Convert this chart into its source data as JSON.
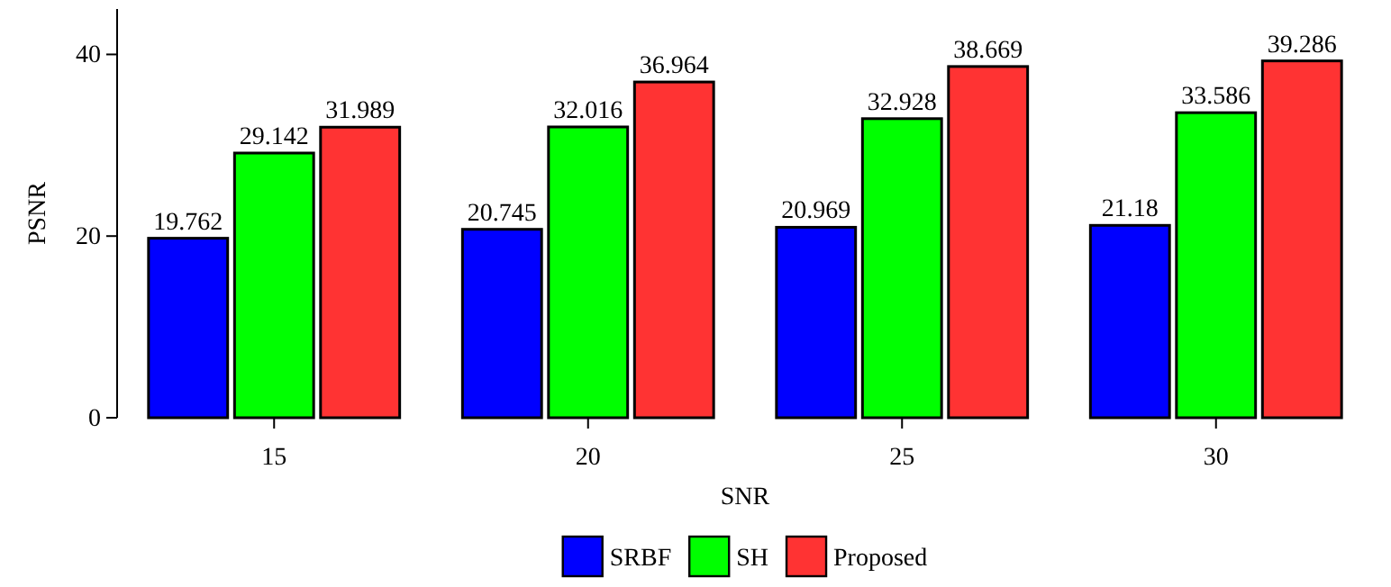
{
  "chart_data": {
    "type": "bar",
    "xlabel": "SNR",
    "ylabel": "PSNR",
    "categories": [
      "15",
      "20",
      "25",
      "30"
    ],
    "series": [
      {
        "name": "SRBF",
        "color": "#0000ff",
        "values": [
          19.762,
          20.745,
          20.969,
          21.18
        ]
      },
      {
        "name": "SH",
        "color": "#00ff00",
        "values": [
          29.142,
          32.016,
          32.928,
          33.586
        ]
      },
      {
        "name": "Proposed",
        "color": "#ff3333",
        "values": [
          31.989,
          36.964,
          38.669,
          39.286
        ]
      }
    ],
    "ylim": [
      0,
      45
    ],
    "yticks": [
      0,
      20,
      40
    ],
    "data_labels": true,
    "legend": "bottom",
    "grid": false
  }
}
